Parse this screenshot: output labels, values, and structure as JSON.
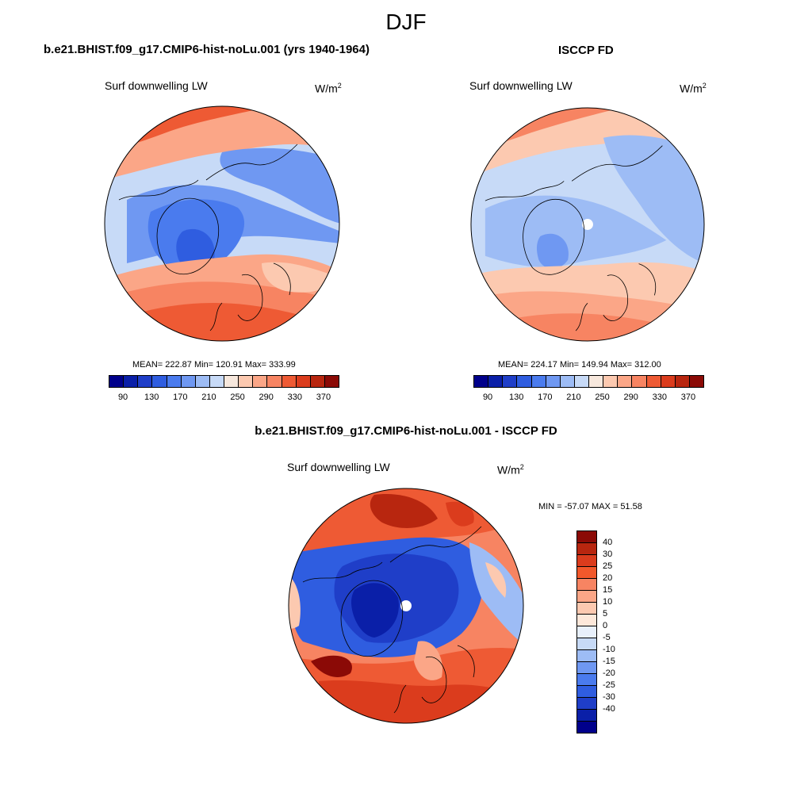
{
  "title": "DJF",
  "panel_left": {
    "title": "b.e21.BHIST.f09_g17.CMIP6-hist-noLu.001 (yrs 1940-1964)",
    "variable": "Surf downwelling LW",
    "units": "W/m",
    "units_sup": "2",
    "stats": "MEAN= 222.87  Min= 120.91  Max= 333.99"
  },
  "panel_right": {
    "title": "ISCCP FD",
    "variable": "Surf downwelling LW",
    "units": "W/m",
    "units_sup": "2",
    "stats": "MEAN= 224.17  Min= 149.94  Max= 312.00"
  },
  "panel_diff": {
    "title": "b.e21.BHIST.f09_g17.CMIP6-hist-noLu.001 - ISCCP FD",
    "variable": "Surf downwelling LW",
    "units": "W/m",
    "units_sup": "2",
    "stats": "MIN = -57.07 MAX =  51.58"
  },
  "colorbar_abs": {
    "colors": [
      "#00008b",
      "#0a1fa8",
      "#1f3ec8",
      "#2f5de0",
      "#4a7bee",
      "#6f98f2",
      "#9dbcf5",
      "#c7daf7",
      "#f7e8dd",
      "#fcc9b0",
      "#fba687",
      "#f78462",
      "#ee5a34",
      "#db3c1d",
      "#b8260f",
      "#8b0a06"
    ],
    "ticks": [
      "90",
      "130",
      "170",
      "210",
      "250",
      "290",
      "330",
      "370"
    ]
  },
  "colorbar_diff": {
    "colors": [
      "#8b0a06",
      "#b8260f",
      "#db3c1d",
      "#f2582b",
      "#f78462",
      "#fba687",
      "#fcc9b0",
      "#fde8da",
      "#e8f0fb",
      "#c7daf7",
      "#9dbcf5",
      "#6f98f2",
      "#4a7bee",
      "#2f5de0",
      "#1f3ec8",
      "#0a1fa8",
      "#00008b"
    ],
    "ticks": [
      "40",
      "30",
      "25",
      "20",
      "15",
      "10",
      "5",
      "0",
      "-5",
      "-10",
      "-15",
      "-20",
      "-25",
      "-30",
      "-40"
    ]
  }
}
